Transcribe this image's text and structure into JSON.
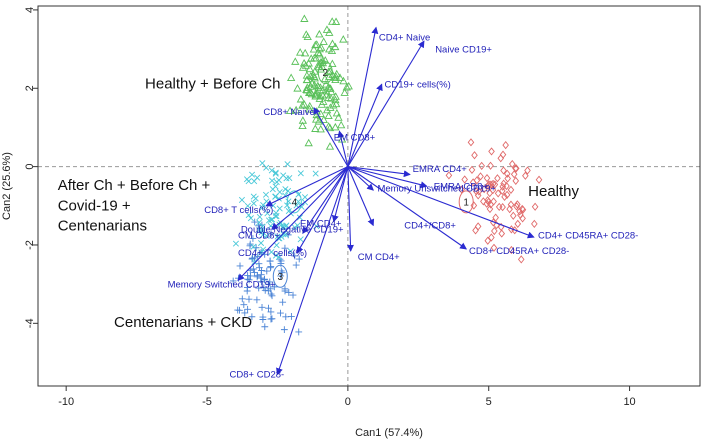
{
  "chart_data": {
    "type": "scatter",
    "subtype": "canonical discriminant biplot",
    "xlabel": "Can1 (57.4%)",
    "ylabel": "Can2 (25.6%)",
    "xlim": [
      -11,
      12.5
    ],
    "ylim": [
      -5.6,
      4.1
    ],
    "xticks": [
      -10,
      -5,
      0,
      5,
      10
    ],
    "yticks": [
      -4,
      -2,
      0,
      2,
      4
    ],
    "reference_lines": {
      "x": 0,
      "y": 0
    },
    "groups": [
      {
        "id": "1",
        "name": "Healthy",
        "color": "#e06a6a",
        "marker": "diamond",
        "centroid": [
          4.2,
          -0.9
        ],
        "center": [
          5.3,
          -0.8
        ],
        "spread": [
          1.1,
          1.05
        ],
        "n": 85,
        "label": "Healthy",
        "label_pos": [
          6.4,
          -0.75
        ]
      },
      {
        "id": "2",
        "name": "Healthy + Before Ch",
        "color": "#5ac05a",
        "marker": "triangle",
        "centroid": [
          -0.8,
          2.4
        ],
        "center": [
          -0.9,
          2.1
        ],
        "spread": [
          0.75,
          1.1
        ],
        "n": 130,
        "label": "Healthy + Before Ch",
        "label_pos": [
          -7.2,
          2.0
        ]
      },
      {
        "id": "3",
        "name": "Centenarians + CKD",
        "color": "#4b84d6",
        "marker": "plus",
        "centroid": [
          -2.4,
          -2.8
        ],
        "center": [
          -3.0,
          -2.9
        ],
        "spread": [
          1.0,
          1.1
        ],
        "n": 90,
        "label": "Centenarians  + CKD",
        "label_pos": [
          -8.3,
          -4.1
        ]
      },
      {
        "id": "4",
        "name": "After Ch + Before Ch + Covid-19 + Centenarians",
        "color": "#49c8d8",
        "marker": "x",
        "centroid": [
          -1.9,
          -0.9
        ],
        "center": [
          -2.6,
          -1.2
        ],
        "spread": [
          1.0,
          1.1
        ],
        "n": 95,
        "label_lines": [
          "After Ch + Before Ch +",
          "Covid-19 +",
          "Centenarians"
        ],
        "label_pos": [
          -10.3,
          -0.6
        ]
      }
    ],
    "vectors": [
      {
        "label": "CD4+ Naive",
        "end": [
          1.0,
          3.55
        ],
        "label_pos": [
          1.1,
          3.3
        ]
      },
      {
        "label": "Naive CD19+",
        "end": [
          2.7,
          3.2
        ],
        "label_pos": [
          3.1,
          3.0
        ]
      },
      {
        "label": "CD19+ cells(%)",
        "end": [
          1.2,
          2.1
        ],
        "label_pos": [
          1.3,
          2.1
        ]
      },
      {
        "label": "CD8+ Naive",
        "end": [
          -1.2,
          1.5
        ],
        "label_pos": [
          -3.0,
          1.4
        ]
      },
      {
        "label": "EM CD8+",
        "end": [
          -0.3,
          0.9
        ],
        "label_pos": [
          -0.5,
          0.75
        ]
      },
      {
        "label": "EMRA CD4+",
        "end": [
          2.2,
          -0.2
        ],
        "label_pos": [
          2.3,
          -0.05
        ]
      },
      {
        "label": "Memory Unswitched CD19+",
        "end": [
          0.9,
          -0.6
        ],
        "label_pos": [
          1.05,
          -0.55
        ]
      },
      {
        "label": "EMRA CD8+",
        "end": [
          2.8,
          -0.5
        ],
        "label_pos": [
          3.05,
          -0.5
        ]
      },
      {
        "label": "CD4+/CD8+",
        "end": [
          0.9,
          -1.5
        ],
        "label_pos": [
          2.0,
          -1.5
        ]
      },
      {
        "label": "CD4+ CD45RA+ CD28-",
        "end": [
          6.6,
          -1.8
        ],
        "label_pos": [
          6.75,
          -1.75
        ]
      },
      {
        "label": "CD8+ CD45RA+ CD28-",
        "end": [
          4.2,
          -2.1
        ],
        "label_pos": [
          4.3,
          -2.15
        ]
      },
      {
        "label": "CM CD4+",
        "end": [
          0.1,
          -2.15
        ],
        "label_pos": [
          0.35,
          -2.3
        ]
      },
      {
        "label": "CD8+ T cells(%)",
        "end": [
          -2.9,
          -1.0
        ],
        "label_pos": [
          -5.1,
          -1.1
        ]
      },
      {
        "label": "CM CD8+",
        "end": [
          -2.7,
          -1.6
        ],
        "label_pos": [
          -3.9,
          -1.75
        ]
      },
      {
        "label": "EM CD4+",
        "end": [
          -0.5,
          -1.4
        ],
        "label_pos": [
          -1.7,
          -1.45
        ]
      },
      {
        "label": "Double Negative CD19+",
        "end": [
          -1.6,
          -1.7
        ],
        "label_pos": [
          -3.8,
          -1.6
        ]
      },
      {
        "label": "CD4+ T cells(%)",
        "end": [
          -1.8,
          -2.2
        ],
        "label_pos": [
          -3.9,
          -2.2
        ]
      },
      {
        "label": "Memory Switched CD19+",
        "end": [
          -3.9,
          -2.9
        ],
        "label_pos": [
          -6.4,
          -3.0
        ]
      },
      {
        "label": "CD8+ CD28-",
        "end": [
          -2.5,
          -5.3
        ],
        "label_pos": [
          -4.2,
          -5.3
        ]
      }
    ]
  }
}
